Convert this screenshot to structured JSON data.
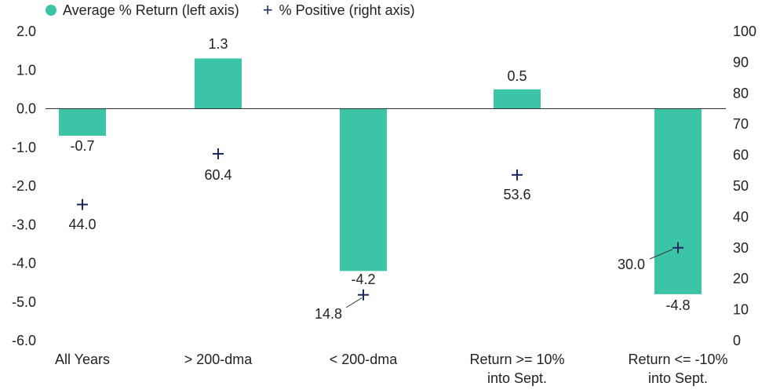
{
  "legend": {
    "bars_label": "Average % Return (left axis)",
    "markers_label": "% Positive (right axis)"
  },
  "colors": {
    "bar": "#3cc4a7",
    "marker": "#1b2a5e",
    "axis": "#333333",
    "text": "#222222"
  },
  "chart_data": {
    "type": "bar",
    "categories": [
      "All Years",
      "> 200-dma",
      "< 200-dma",
      "Return >= 10%\ninto Sept.",
      "Return <= -10%\ninto Sept."
    ],
    "series": [
      {
        "name": "Average % Return (left axis)",
        "axis": "left",
        "kind": "bar",
        "values": [
          -0.7,
          1.3,
          -4.2,
          0.5,
          -4.8
        ],
        "labels": [
          "-0.7",
          "1.3",
          "-4.2",
          "0.5",
          "-4.8"
        ]
      },
      {
        "name": "% Positive (right axis)",
        "axis": "right",
        "kind": "marker",
        "values": [
          44.0,
          60.4,
          14.8,
          53.6,
          30.0
        ],
        "labels": [
          "44.0",
          "60.4",
          "14.8",
          "53.6",
          "30.0"
        ]
      }
    ],
    "left_axis": {
      "range": [
        -6.0,
        2.0
      ],
      "ticks": [
        "2.0",
        "1.0",
        "0.0",
        "-1.0",
        "-2.0",
        "-3.0",
        "-4.0",
        "-5.0",
        "-6.0"
      ]
    },
    "right_axis": {
      "range": [
        0,
        100
      ],
      "ticks": [
        "100",
        "90",
        "80",
        "70",
        "60",
        "50",
        "40",
        "30",
        "20",
        "10",
        "0"
      ]
    },
    "grid": false
  }
}
